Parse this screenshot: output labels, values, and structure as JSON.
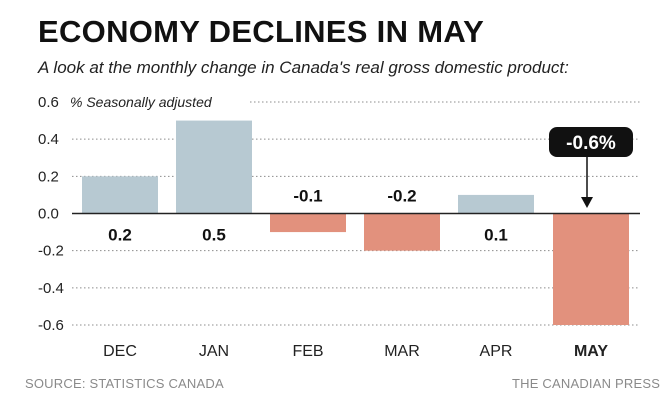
{
  "chart_data": {
    "type": "bar",
    "title": "ECONOMY DECLINES IN MAY",
    "subtitle": "A look at the monthly change in Canada's real gross domestic product:",
    "ylabel": "% Seasonally adjusted",
    "categories": [
      "DEC",
      "JAN",
      "FEB",
      "MAR",
      "APR",
      "MAY"
    ],
    "values": [
      0.2,
      0.5,
      -0.1,
      -0.2,
      0.1,
      -0.6
    ],
    "value_labels": [
      "0.2",
      "0.5",
      "-0.1",
      "-0.2",
      "0.1",
      ""
    ],
    "yticks": [
      "0.6",
      "0.4",
      "0.2",
      "0.0",
      "-0.2",
      "-0.4",
      "-0.6"
    ],
    "ytick_values": [
      0.6,
      0.4,
      0.2,
      0.0,
      -0.2,
      -0.4,
      -0.6
    ],
    "ylim": [
      -0.6,
      0.6
    ],
    "highlight": {
      "category": "MAY",
      "label": "-0.6%"
    },
    "colors": {
      "positive": "#b7c9d2",
      "negative": "#e2917d",
      "callout": "#111111"
    }
  },
  "footer": {
    "source": "SOURCE: STATISTICS CANADA",
    "credit": "THE CANADIAN PRESS"
  }
}
